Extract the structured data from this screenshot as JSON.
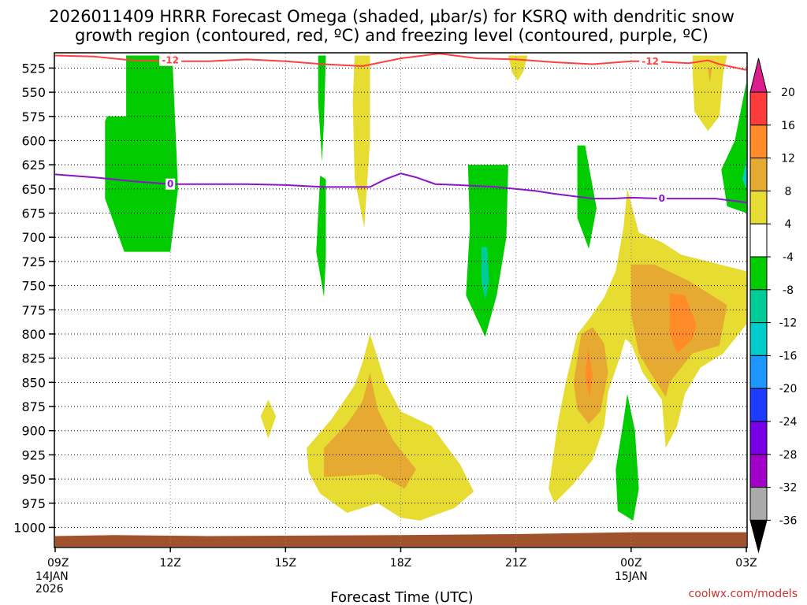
{
  "chart_data": {
    "type": "contour",
    "title_lines": [
      "2026011409 HRRR Forecast Omega (shaded, μbar/s) for KSRQ with dendritic snow",
      "growth region (contoured, red, ºC) and freezing level (contoured, purple, ºC)"
    ],
    "xlabel": "Forecast Time (UTC)",
    "credit": "coolwx.com/models",
    "x_range": [
      0,
      18
    ],
    "x_ticks": [
      {
        "x": 0,
        "label": "09Z",
        "sub": [
          "14JAN",
          "2026"
        ]
      },
      {
        "x": 3,
        "label": "12Z",
        "sub": []
      },
      {
        "x": 6,
        "label": "15Z",
        "sub": []
      },
      {
        "x": 9,
        "label": "18Z",
        "sub": []
      },
      {
        "x": 12,
        "label": "21Z",
        "sub": []
      },
      {
        "x": 15,
        "label": "00Z",
        "sub": [
          "15JAN"
        ]
      },
      {
        "x": 18,
        "label": "03Z",
        "sub": []
      }
    ],
    "y_range": [
      1020,
      510
    ],
    "y_ticks": [
      "525",
      "550",
      "575",
      "600",
      "625",
      "650",
      "675",
      "700",
      "725",
      "750",
      "775",
      "800",
      "825",
      "850",
      "875",
      "900",
      "925",
      "950",
      "975",
      "1000"
    ],
    "colorbar": {
      "labels": [
        "20",
        "16",
        "12",
        "8",
        "4",
        "-4",
        "-8",
        "-12",
        "-16",
        "-20",
        "-24",
        "-28",
        "-32",
        "-36"
      ],
      "colors": [
        "#ff3c3c",
        "#ff8c28",
        "#e6aa32",
        "#e6dc32",
        "#ffffff",
        "#00cc00",
        "#00cc99",
        "#00cccc",
        "#1e96ff",
        "#1e3cff",
        "#7800e6",
        "#a000c8",
        "#aaaaaa"
      ],
      "top_arrow": "#dc1e8c",
      "bottom_arrow": "#000000"
    },
    "omega_regions": [
      {
        "color": "#00cc00",
        "points": [
          [
            0.9,
            512
          ],
          [
            1.85,
            512
          ],
          [
            1.85,
            575
          ],
          [
            1.35,
            575
          ],
          [
            1.3,
            580
          ],
          [
            1.3,
            600
          ],
          [
            1.3,
            660
          ],
          [
            1.8,
            715
          ],
          [
            3.0,
            715
          ],
          [
            3.2,
            650
          ],
          [
            3.05,
            512
          ]
        ]
      },
      {
        "color": "#00cc00",
        "points": [
          [
            6.85,
            512
          ],
          [
            7.05,
            512
          ],
          [
            7.0,
            580
          ],
          [
            6.95,
            622
          ],
          [
            6.85,
            560
          ]
        ]
      },
      {
        "color": "#00cc00",
        "points": [
          [
            6.9,
            636
          ],
          [
            7.05,
            640
          ],
          [
            7.05,
            720
          ],
          [
            7.0,
            762
          ],
          [
            6.8,
            715
          ]
        ]
      },
      {
        "color": "#00cc00",
        "points": [
          [
            10.75,
            625
          ],
          [
            11.8,
            625
          ],
          [
            11.75,
            700
          ],
          [
            11.5,
            760
          ],
          [
            11.2,
            803
          ],
          [
            10.7,
            760
          ],
          [
            10.8,
            690
          ]
        ]
      },
      {
        "color": "#00cc99",
        "points": [
          [
            11.1,
            710
          ],
          [
            11.25,
            710
          ],
          [
            11.3,
            745
          ],
          [
            11.2,
            765
          ],
          [
            11.1,
            745
          ]
        ]
      },
      {
        "color": "#00cc00",
        "points": [
          [
            13.6,
            605
          ],
          [
            13.8,
            605
          ],
          [
            14.1,
            670
          ],
          [
            13.9,
            712
          ],
          [
            13.6,
            680
          ]
        ]
      },
      {
        "color": "#00cc00",
        "points": [
          [
            18.0,
            540
          ],
          [
            18.0,
            675
          ],
          [
            17.5,
            668
          ],
          [
            17.35,
            630
          ],
          [
            17.7,
            600
          ]
        ]
      },
      {
        "color": "#00cccc",
        "points": [
          [
            18.0,
            620
          ],
          [
            18.0,
            650
          ],
          [
            17.9,
            640
          ]
        ]
      },
      {
        "color": "#00cc00",
        "points": [
          [
            14.9,
            862
          ],
          [
            15.1,
            900
          ],
          [
            15.2,
            960
          ],
          [
            15.05,
            993
          ],
          [
            14.65,
            983
          ],
          [
            14.6,
            940
          ],
          [
            14.8,
            890
          ]
        ]
      },
      {
        "color": "#e6dc32",
        "points": [
          [
            7.8,
            512
          ],
          [
            8.2,
            512
          ],
          [
            8.2,
            600
          ],
          [
            8.05,
            690
          ],
          [
            7.8,
            640
          ],
          [
            7.75,
            560
          ]
        ]
      },
      {
        "color": "#e6dc32",
        "points": [
          [
            11.8,
            512
          ],
          [
            12.3,
            512
          ],
          [
            12.2,
            528
          ],
          [
            12.05,
            538
          ],
          [
            11.9,
            530
          ]
        ]
      },
      {
        "color": "#e6dc32",
        "points": [
          [
            16.6,
            512
          ],
          [
            17.5,
            512
          ],
          [
            17.4,
            530
          ],
          [
            17.3,
            575
          ],
          [
            17.0,
            590
          ],
          [
            16.65,
            570
          ],
          [
            16.6,
            530
          ]
        ]
      },
      {
        "color": "#e6aa32",
        "points": [
          [
            17.0,
            525
          ],
          [
            17.1,
            525
          ],
          [
            17.05,
            540
          ]
        ]
      },
      {
        "color": "#e6dc32",
        "points": [
          [
            5.55,
            868
          ],
          [
            5.75,
            885
          ],
          [
            5.55,
            908
          ],
          [
            5.35,
            885
          ]
        ]
      },
      {
        "color": "#e6dc32",
        "points": [
          [
            6.55,
            918
          ],
          [
            7.2,
            888
          ],
          [
            7.8,
            853
          ],
          [
            8.0,
            830
          ],
          [
            8.2,
            800
          ],
          [
            8.6,
            850
          ],
          [
            9.0,
            880
          ],
          [
            9.8,
            895
          ],
          [
            10.55,
            935
          ],
          [
            10.9,
            963
          ],
          [
            10.4,
            980
          ],
          [
            9.5,
            993
          ],
          [
            9.0,
            990
          ],
          [
            8.4,
            975
          ],
          [
            7.6,
            985
          ],
          [
            6.9,
            965
          ],
          [
            6.6,
            943
          ]
        ]
      },
      {
        "color": "#e6aa32",
        "points": [
          [
            7.0,
            918
          ],
          [
            7.6,
            893
          ],
          [
            8.0,
            870
          ],
          [
            8.2,
            840
          ],
          [
            8.4,
            878
          ],
          [
            8.8,
            910
          ],
          [
            9.4,
            940
          ],
          [
            9.1,
            960
          ],
          [
            8.4,
            945
          ],
          [
            7.0,
            948
          ]
        ]
      },
      {
        "color": "#e6dc32",
        "points": [
          [
            13.3,
            850
          ],
          [
            13.6,
            800
          ],
          [
            13.9,
            785
          ],
          [
            14.3,
            762
          ],
          [
            14.6,
            735
          ],
          [
            14.8,
            690
          ],
          [
            14.9,
            650
          ],
          [
            15.2,
            695
          ],
          [
            15.8,
            705
          ],
          [
            16.3,
            718
          ],
          [
            17.0,
            725
          ],
          [
            18.0,
            735
          ],
          [
            18.0,
            790
          ],
          [
            17.4,
            820
          ],
          [
            16.8,
            835
          ],
          [
            16.4,
            862
          ],
          [
            16.2,
            895
          ],
          [
            15.9,
            918
          ],
          [
            15.8,
            868
          ],
          [
            15.3,
            840
          ],
          [
            15.0,
            810
          ],
          [
            14.85,
            805
          ],
          [
            14.7,
            825
          ],
          [
            14.4,
            860
          ],
          [
            14.3,
            895
          ],
          [
            14.0,
            930
          ],
          [
            13.5,
            955
          ],
          [
            13.0,
            975
          ],
          [
            12.85,
            960
          ],
          [
            13.1,
            890
          ]
        ]
      },
      {
        "color": "#e6aa32",
        "points": [
          [
            13.5,
            850
          ],
          [
            13.7,
            800
          ],
          [
            14.0,
            793
          ],
          [
            14.3,
            810
          ],
          [
            14.4,
            840
          ],
          [
            14.2,
            880
          ],
          [
            13.9,
            893
          ],
          [
            13.6,
            878
          ]
        ]
      },
      {
        "color": "#e6aa32",
        "points": [
          [
            15.0,
            728
          ],
          [
            15.6,
            728
          ],
          [
            16.5,
            745
          ],
          [
            17.5,
            770
          ],
          [
            17.3,
            812
          ],
          [
            16.6,
            820
          ],
          [
            16.0,
            850
          ],
          [
            15.9,
            865
          ],
          [
            15.5,
            840
          ],
          [
            15.2,
            820
          ],
          [
            15.0,
            780
          ]
        ]
      },
      {
        "color": "#ff8c28",
        "points": [
          [
            13.88,
            815
          ],
          [
            14.0,
            843
          ],
          [
            13.92,
            865
          ],
          [
            13.8,
            845
          ]
        ]
      },
      {
        "color": "#ff8c28",
        "points": [
          [
            16.0,
            758
          ],
          [
            16.4,
            760
          ],
          [
            16.7,
            790
          ],
          [
            16.6,
            805
          ],
          [
            16.2,
            820
          ],
          [
            16.0,
            800
          ]
        ]
      }
    ],
    "surface": {
      "color": "#a0522d",
      "points": [
        [
          0,
          1009
        ],
        [
          1.5,
          1008
        ],
        [
          4,
          1009
        ],
        [
          9,
          1008
        ],
        [
          12,
          1007
        ],
        [
          15,
          1005
        ],
        [
          18,
          1005
        ],
        [
          18,
          1020
        ],
        [
          0,
          1020
        ]
      ]
    },
    "dgz_contour": {
      "color": "#ff4040",
      "label": "-12",
      "label_at": [
        [
          3.0,
          517
        ],
        [
          15.5,
          518
        ]
      ],
      "points": [
        [
          0,
          512
        ],
        [
          1,
          513
        ],
        [
          2,
          517
        ],
        [
          3,
          518
        ],
        [
          4,
          518
        ],
        [
          5,
          516
        ],
        [
          6,
          518
        ],
        [
          7,
          521
        ],
        [
          8,
          523
        ],
        [
          9,
          515
        ],
        [
          10,
          510
        ],
        [
          11,
          515
        ],
        [
          12,
          516
        ],
        [
          13,
          519
        ],
        [
          14,
          521
        ],
        [
          15,
          518
        ],
        [
          15.5,
          518
        ],
        [
          16.5,
          520
        ],
        [
          17.0,
          517
        ],
        [
          17.3,
          521
        ],
        [
          18,
          527
        ]
      ]
    },
    "freezing_contour": {
      "color": "#8a14c8",
      "label": "0",
      "label_at": [
        [
          3.0,
          645
        ],
        [
          15.8,
          660
        ]
      ],
      "points": [
        [
          0,
          635
        ],
        [
          1,
          638
        ],
        [
          2,
          642
        ],
        [
          3,
          645
        ],
        [
          4,
          645
        ],
        [
          5,
          645
        ],
        [
          6,
          646
        ],
        [
          7,
          648
        ],
        [
          8,
          648
        ],
        [
          8.2,
          648
        ],
        [
          8.6,
          640
        ],
        [
          9.0,
          634
        ],
        [
          9.4,
          638
        ],
        [
          9.9,
          645
        ],
        [
          10.5,
          646
        ],
        [
          11.5,
          648
        ],
        [
          12.5,
          652
        ],
        [
          13,
          655
        ],
        [
          14,
          660
        ],
        [
          14.5,
          660
        ],
        [
          15,
          659
        ],
        [
          15.8,
          660
        ],
        [
          16.5,
          660
        ],
        [
          17.2,
          660
        ],
        [
          18,
          664
        ]
      ]
    }
  }
}
